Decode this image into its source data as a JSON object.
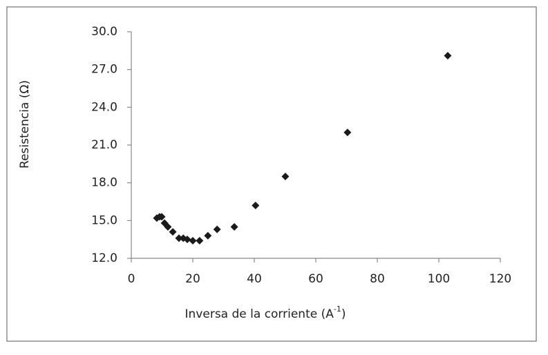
{
  "chart_data": {
    "type": "scatter",
    "x_label": {
      "text": "Inversa de la corriente (A",
      "sup": "-1",
      "close": ")"
    },
    "y_label": "Resistencia  (Ω)",
    "color": "#1a1a1a",
    "grid": false,
    "xlim": [
      0,
      120
    ],
    "xticks": [
      0,
      20,
      40,
      60,
      80,
      100,
      120
    ],
    "ylim": [
      12,
      30
    ],
    "yticks": [
      {
        "value": 12,
        "label": "12.0"
      },
      {
        "value": 15,
        "label": "15.0"
      },
      {
        "value": 18,
        "label": "18.0"
      },
      {
        "value": 21,
        "label": "21.0"
      },
      {
        "value": 24,
        "label": "24.0"
      },
      {
        "value": 27,
        "label": "27.0"
      },
      {
        "value": 30,
        "label": "30.0"
      }
    ],
    "x": [
      8.3,
      9.2,
      9.9,
      10.8,
      11.9,
      13.5,
      15.5,
      16.9,
      18.2,
      20.0,
      22.2,
      24.9,
      27.9,
      33.5,
      40.4,
      50.1,
      70.3,
      102.9
    ],
    "values": [
      15.2,
      15.3,
      15.3,
      14.8,
      14.5,
      14.1,
      13.6,
      13.6,
      13.5,
      13.4,
      13.4,
      13.8,
      14.3,
      14.5,
      16.2,
      18.5,
      22.0,
      28.1
    ]
  }
}
